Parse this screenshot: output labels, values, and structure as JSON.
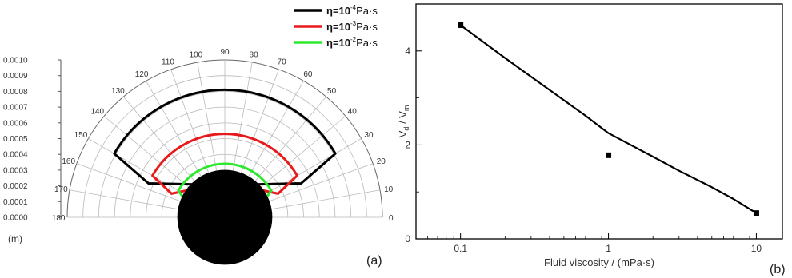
{
  "panels": {
    "a_label": "(a)",
    "b_label": "(b)"
  },
  "chart_data": [
    {
      "type": "line",
      "subtype": "polar-half",
      "panel": "(a)",
      "radial_axis": {
        "unit_label": "(m)",
        "range": [
          0,
          0.001
        ],
        "ticks": [
          "0.0000",
          "0.0001",
          "0.0002",
          "0.0003",
          "0.0004",
          "0.0005",
          "0.0006",
          "0.0007",
          "0.0008",
          "0.0009",
          "0.0010"
        ]
      },
      "angular_axis": {
        "range_deg": [
          0,
          180
        ],
        "ticks": [
          "0",
          "10",
          "20",
          "30",
          "40",
          "50",
          "60",
          "70",
          "80",
          "90",
          "100",
          "110",
          "120",
          "130",
          "140",
          "150",
          "160",
          "170",
          "180"
        ]
      },
      "grid": true,
      "legend": {
        "placement": "top-right"
      },
      "core_radius": 0.00022,
      "series": [
        {
          "name_prefix": "η=10",
          "exp": "-4",
          "name_unit": "Pa·s",
          "color": "#000000",
          "outer_radius": 0.00081,
          "angle_range_deg": [
            30,
            150
          ],
          "corner_radius": 0.00053,
          "base_angle_deg": [
            70,
            110
          ]
        },
        {
          "name_prefix": "η=10",
          "exp": "-3",
          "name_unit": "Pa·s",
          "color": "#e8191b",
          "outer_radius": 0.00053,
          "angle_range_deg": [
            30,
            150
          ],
          "corner_radius": 0.00037,
          "base_angle_deg": [
            70,
            110
          ]
        },
        {
          "name_prefix": "η=10",
          "exp": "-2",
          "name_unit": "Pa·s",
          "color": "#2ee82e",
          "outer_radius": 0.00034,
          "angle_range_deg": [
            30,
            150
          ],
          "corner_radius": 0.00028,
          "base_angle_deg": [
            70,
            110
          ]
        }
      ]
    },
    {
      "type": "line",
      "panel": "(b)",
      "xlabel": "Fluid viscosity / (mPa·s)",
      "ylabel_main": "V",
      "ylabel_sub1": "d",
      "ylabel_sep": " / V",
      "ylabel_sub2": "m",
      "xscale": "log",
      "xlim": [
        0.05,
        15
      ],
      "ylim": [
        0,
        5
      ],
      "xticks": [
        0.1,
        1,
        10
      ],
      "xtick_labels": [
        "0.1",
        "1",
        "10"
      ],
      "yticks": [
        0,
        2,
        4
      ],
      "ytick_labels": [
        "0",
        "2",
        "4"
      ],
      "series": [
        {
          "kind": "scatter",
          "marker": "square",
          "color": "#000000",
          "x": [
            0.1,
            1,
            10
          ],
          "y": [
            4.55,
            1.78,
            0.55
          ]
        },
        {
          "kind": "curve",
          "color": "#000000",
          "x": [
            0.1,
            0.2,
            0.3,
            0.5,
            0.7,
            1,
            2,
            3,
            5,
            7,
            10
          ],
          "y": [
            4.55,
            3.85,
            3.45,
            2.95,
            2.62,
            2.25,
            1.75,
            1.45,
            1.1,
            0.85,
            0.55
          ]
        }
      ]
    }
  ]
}
